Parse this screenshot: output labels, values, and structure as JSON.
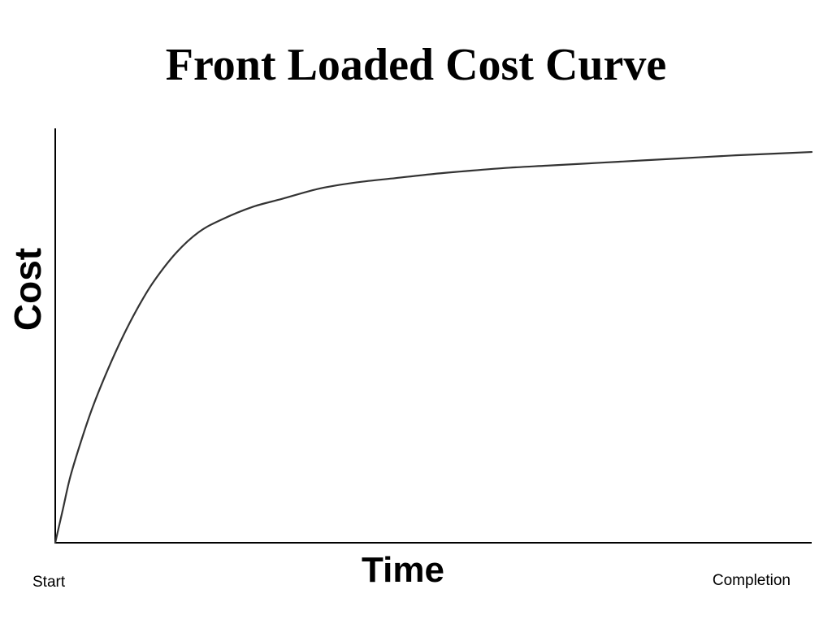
{
  "chart_data": {
    "type": "line",
    "title": "Front Loaded Cost Curve",
    "xlabel": "Time",
    "ylabel": "Cost",
    "x_tick_labels": [
      "Start",
      "Completion"
    ],
    "grid": false,
    "legend": "none",
    "xlim": [
      0,
      1
    ],
    "ylim": [
      0,
      1
    ],
    "series": [
      {
        "x": [
          0,
          0.01,
          0.02,
          0.035,
          0.05,
          0.07,
          0.09,
          0.11,
          0.13,
          0.16,
          0.19,
          0.22,
          0.26,
          0.3,
          0.35,
          0.4,
          0.45,
          0.5,
          0.55,
          0.6,
          0.65,
          0.7,
          0.75,
          0.8,
          0.85,
          0.9,
          0.95,
          1.0
        ],
        "values": [
          0,
          0.08,
          0.16,
          0.25,
          0.33,
          0.42,
          0.5,
          0.57,
          0.63,
          0.7,
          0.75,
          0.78,
          0.81,
          0.83,
          0.855,
          0.87,
          0.88,
          0.89,
          0.898,
          0.905,
          0.91,
          0.915,
          0.92,
          0.925,
          0.93,
          0.935,
          0.939,
          0.943
        ],
        "color": "#333333"
      }
    ]
  }
}
